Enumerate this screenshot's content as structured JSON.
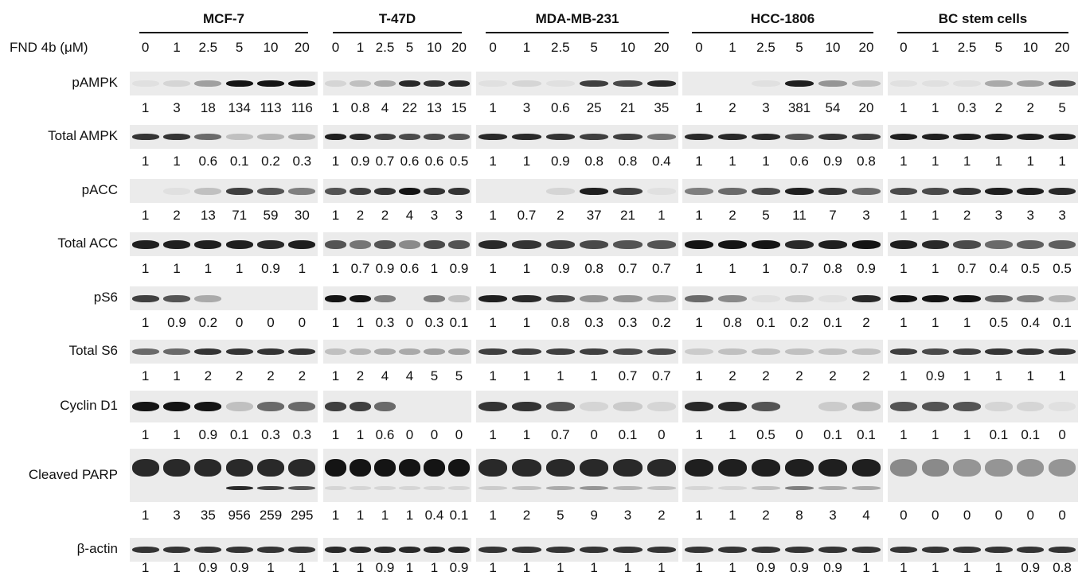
{
  "conc_label": "FND 4b (μM)",
  "concentrations": [
    "0",
    "1",
    "2.5",
    "5",
    "10",
    "20"
  ],
  "cell_lines": [
    "MCF-7",
    "T-47D",
    "MDA-MB-231",
    "HCC-1806",
    "BC stem cells"
  ],
  "rows": [
    {
      "label": "pAMPK",
      "values": [
        [
          "1",
          "3",
          "18",
          "134",
          "113",
          "116"
        ],
        [
          "1",
          "0.8",
          "4",
          "22",
          "13",
          "15"
        ],
        [
          "1",
          "3",
          "0.6",
          "25",
          "21",
          "35"
        ],
        [
          "1",
          "2",
          "3",
          "381",
          "54",
          "20"
        ],
        [
          "1",
          "1",
          "0.3",
          "2",
          "2",
          "5"
        ]
      ]
    },
    {
      "label": "Total AMPK",
      "values": [
        [
          "1",
          "1",
          "0.6",
          "0.1",
          "0.2",
          "0.3"
        ],
        [
          "1",
          "0.9",
          "0.7",
          "0.6",
          "0.6",
          "0.5"
        ],
        [
          "1",
          "1",
          "0.9",
          "0.8",
          "0.8",
          "0.4"
        ],
        [
          "1",
          "1",
          "1",
          "0.6",
          "0.9",
          "0.8"
        ],
        [
          "1",
          "1",
          "1",
          "1",
          "1",
          "1"
        ]
      ]
    },
    {
      "label": "pACC",
      "values": [
        [
          "1",
          "2",
          "13",
          "71",
          "59",
          "30"
        ],
        [
          "1",
          "2",
          "2",
          "4",
          "3",
          "3"
        ],
        [
          "1",
          "0.7",
          "2",
          "37",
          "21",
          "1"
        ],
        [
          "1",
          "2",
          "5",
          "11",
          "7",
          "3"
        ],
        [
          "1",
          "1",
          "2",
          "3",
          "3",
          "3"
        ]
      ]
    },
    {
      "label": "Total ACC",
      "values": [
        [
          "1",
          "1",
          "1",
          "1",
          "0.9",
          "1"
        ],
        [
          "1",
          "0.7",
          "0.9",
          "0.6",
          "1",
          "0.9"
        ],
        [
          "1",
          "1",
          "0.9",
          "0.8",
          "0.7",
          "0.7"
        ],
        [
          "1",
          "1",
          "1",
          "0.7",
          "0.8",
          "0.9"
        ],
        [
          "1",
          "1",
          "0.7",
          "0.4",
          "0.5",
          "0.5"
        ]
      ]
    },
    {
      "label": "pS6",
      "values": [
        [
          "1",
          "0.9",
          "0.2",
          "0",
          "0",
          "0"
        ],
        [
          "1",
          "1",
          "0.3",
          "0",
          "0.3",
          "0.1"
        ],
        [
          "1",
          "1",
          "0.8",
          "0.3",
          "0.3",
          "0.2"
        ],
        [
          "1",
          "0.8",
          "0.1",
          "0.2",
          "0.1",
          "2"
        ],
        [
          "1",
          "1",
          "1",
          "0.5",
          "0.4",
          "0.1"
        ]
      ]
    },
    {
      "label": "Total S6",
      "values": [
        [
          "1",
          "1",
          "2",
          "2",
          "2",
          "2"
        ],
        [
          "1",
          "2",
          "4",
          "4",
          "5",
          "5"
        ],
        [
          "1",
          "1",
          "1",
          "1",
          "0.7",
          "0.7"
        ],
        [
          "1",
          "2",
          "2",
          "2",
          "2",
          "2"
        ],
        [
          "1",
          "0.9",
          "1",
          "1",
          "1",
          "1"
        ]
      ]
    },
    {
      "label": "Cyclin D1",
      "values": [
        [
          "1",
          "1",
          "0.9",
          "0.1",
          "0.3",
          "0.3"
        ],
        [
          "1",
          "1",
          "0.6",
          "0",
          "0",
          "0"
        ],
        [
          "1",
          "1",
          "0.7",
          "0",
          "0.1",
          "0"
        ],
        [
          "1",
          "1",
          "0.5",
          "0",
          "0.1",
          "0.1"
        ],
        [
          "1",
          "1",
          "1",
          "0.1",
          "0.1",
          "0"
        ]
      ]
    },
    {
      "label": "Cleaved PARP",
      "values": [
        [
          "1",
          "3",
          "35",
          "956",
          "259",
          "295"
        ],
        [
          "1",
          "1",
          "1",
          "1",
          "0.4",
          "0.1"
        ],
        [
          "1",
          "2",
          "5",
          "9",
          "3",
          "2"
        ],
        [
          "1",
          "1",
          "2",
          "8",
          "3",
          "4"
        ],
        [
          "0",
          "0",
          "0",
          "0",
          "0",
          "0"
        ]
      ]
    },
    {
      "label": "β-actin",
      "values": [
        [
          "1",
          "1",
          "0.9",
          "0.9",
          "1",
          "1"
        ],
        [
          "1",
          "1",
          "0.9",
          "1",
          "1",
          "0.9"
        ],
        [
          "1",
          "1",
          "1",
          "1",
          "1",
          "1"
        ],
        [
          "1",
          "1",
          "0.9",
          "0.9",
          "0.9",
          "1"
        ],
        [
          "1",
          "1",
          "1",
          "1",
          "0.9",
          "0.8"
        ]
      ]
    }
  ]
}
